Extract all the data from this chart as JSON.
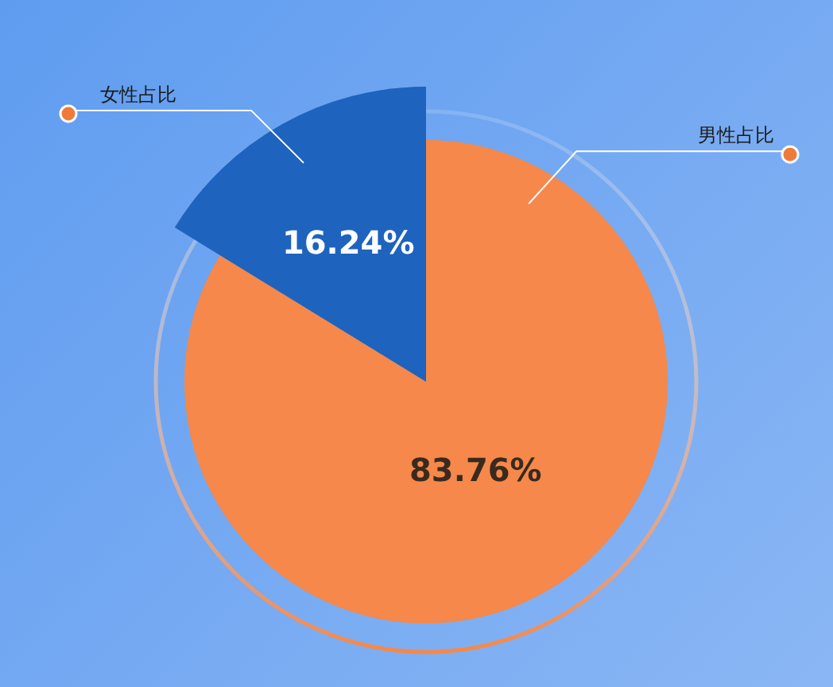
{
  "chart_data": {
    "type": "pie",
    "categories": [
      "男性占比",
      "女性占比"
    ],
    "values": [
      83.76,
      16.24
    ],
    "value_labels": [
      "83.76%",
      "16.24%"
    ],
    "colors": [
      "#f5884a",
      "#1e63be"
    ]
  }
}
